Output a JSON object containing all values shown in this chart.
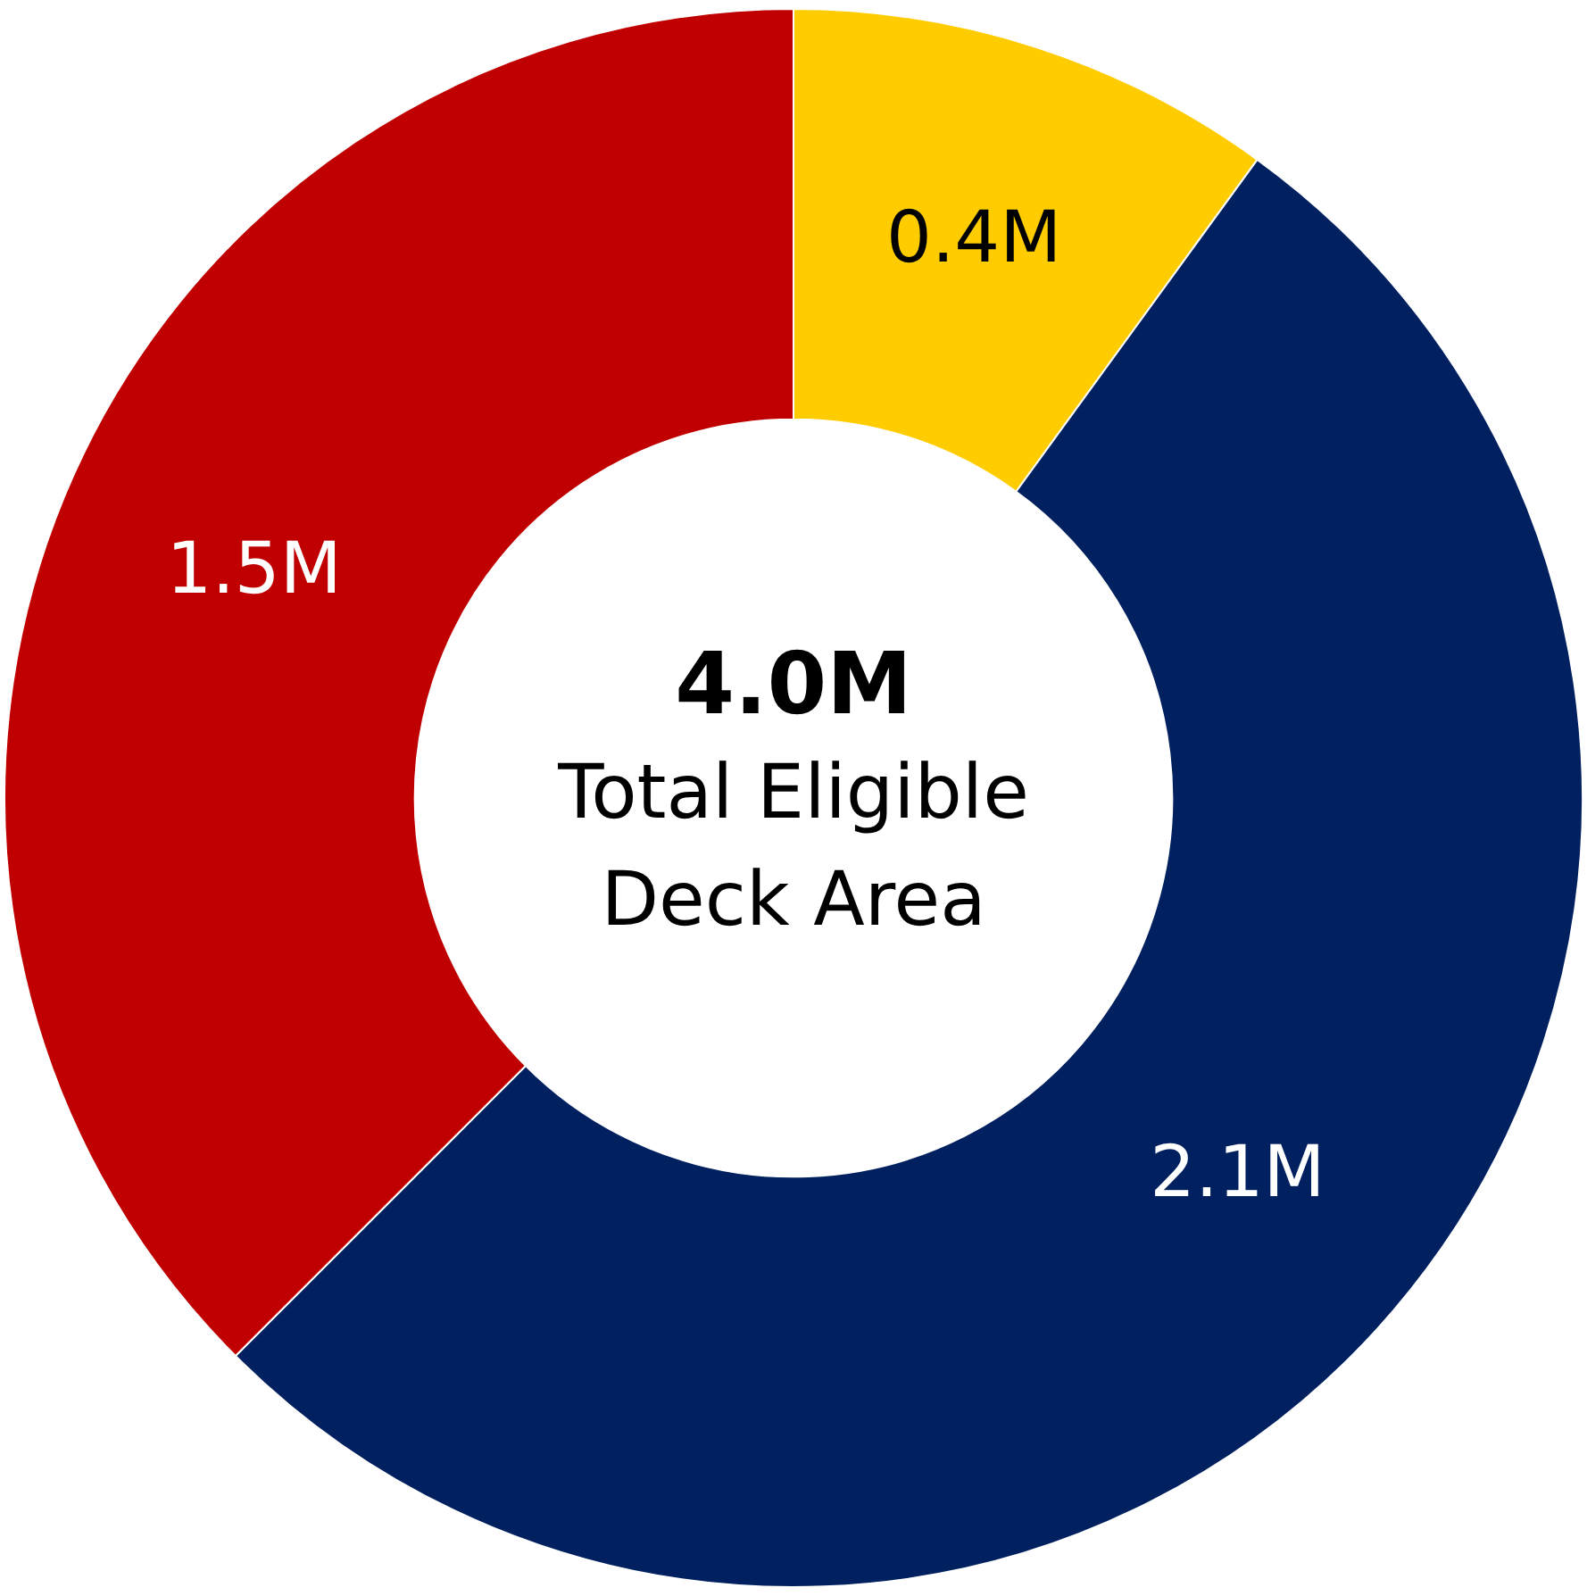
{
  "chart_data": {
    "type": "donut",
    "categories": [
      null,
      null,
      null
    ],
    "values": [
      0.4,
      2.1,
      1.5
    ],
    "colors": [
      "#ffcc00",
      "#002060",
      "#c00000"
    ],
    "value_labels": [
      "0.4M",
      "2.1M",
      "1.5M"
    ],
    "annotations": [
      "4.0M",
      "Total Eligible Deck Area"
    ],
    "legend": false
  }
}
